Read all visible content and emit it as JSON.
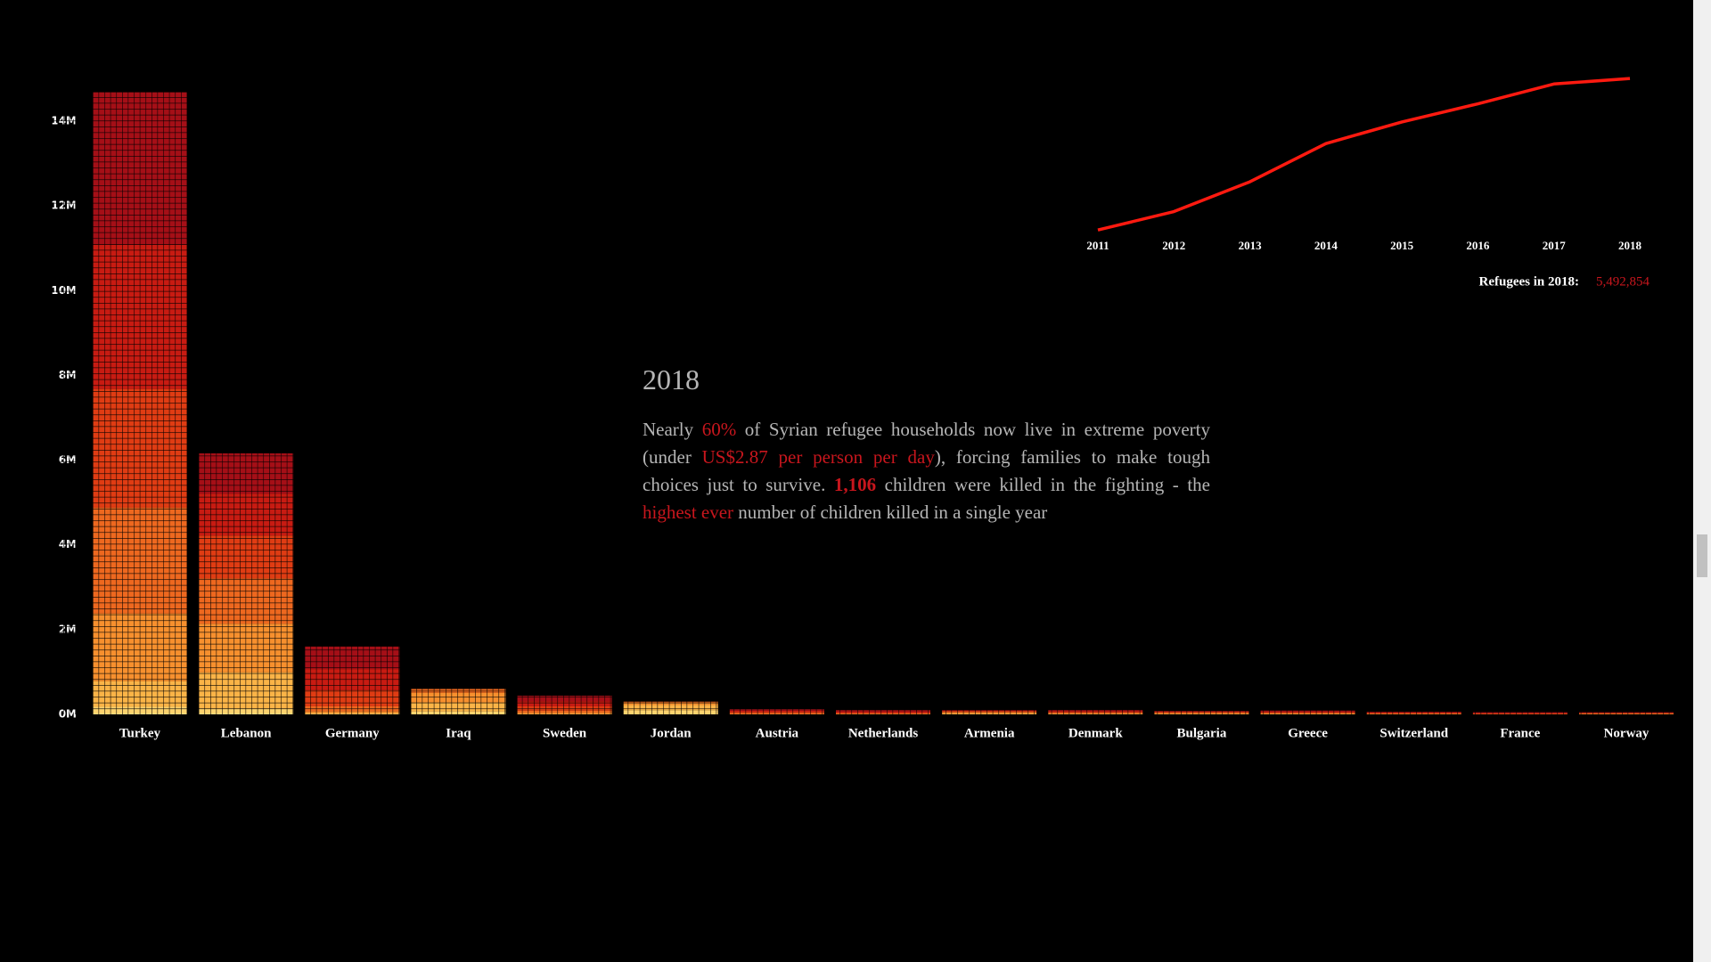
{
  "chart_data": [
    {
      "type": "bar",
      "stacked": true,
      "categories": [
        "Turkey",
        "Lebanon",
        "Germany",
        "Iraq",
        "Sweden",
        "Jordan",
        "Austria",
        "Netherlands",
        "Armenia",
        "Denmark",
        "Bulgaria",
        "Greece",
        "Switzerland",
        "France",
        "Norway"
      ],
      "series": [
        {
          "name": "2011",
          "color": "#fff09a",
          "values": [
            10000,
            10000,
            0,
            0,
            0,
            0,
            0,
            0,
            0,
            0,
            0,
            0,
            0,
            0,
            0
          ]
        },
        {
          "name": "2012",
          "color": "#fdd36e",
          "values": [
            170000,
            130000,
            10000,
            70000,
            0,
            100000,
            0,
            0,
            0,
            0,
            0,
            0,
            0,
            0,
            0
          ]
        },
        {
          "name": "2013",
          "color": "#fbb447",
          "values": [
            600000,
            850000,
            20000,
            210000,
            10000,
            120000,
            0,
            0,
            20000,
            10000,
            10000,
            10000,
            0,
            0,
            0
          ]
        },
        {
          "name": "2014",
          "color": "#f7902e",
          "values": [
            1600000,
            1150000,
            40000,
            230000,
            30000,
            60000,
            10000,
            10000,
            20000,
            10000,
            10000,
            10000,
            10000,
            0,
            10000
          ]
        },
        {
          "name": "2015",
          "color": "#ee681f",
          "values": [
            2500000,
            1070000,
            120000,
            90000,
            50000,
            20000,
            20000,
            10000,
            20000,
            20000,
            20000,
            10000,
            10000,
            10000,
            10000
          ]
        },
        {
          "name": "2016",
          "color": "#e03c13",
          "values": [
            2800000,
            1010000,
            380000,
            0,
            100000,
            0,
            30000,
            20000,
            20000,
            20000,
            20000,
            20000,
            10000,
            10000,
            10000
          ]
        },
        {
          "name": "2017",
          "color": "#c81b12",
          "values": [
            3400000,
            990000,
            500000,
            0,
            120000,
            0,
            30000,
            30000,
            10000,
            20000,
            10000,
            20000,
            20000,
            10000,
            10000
          ]
        },
        {
          "name": "2018",
          "color": "#a50f17",
          "values": [
            3600000,
            950000,
            530000,
            0,
            130000,
            0,
            30000,
            30000,
            10000,
            20000,
            10000,
            20000,
            10000,
            20000,
            10000
          ]
        }
      ],
      "ylim": [
        0,
        15000000
      ],
      "yticks": [
        {
          "value": 0,
          "label": "0M"
        },
        {
          "value": 2000000,
          "label": "2M"
        },
        {
          "value": 4000000,
          "label": "4M"
        },
        {
          "value": 6000000,
          "label": "6M"
        },
        {
          "value": 8000000,
          "label": "8M"
        },
        {
          "value": 10000000,
          "label": "10M"
        },
        {
          "value": 12000000,
          "label": "12M"
        },
        {
          "value": 14000000,
          "label": "14M"
        }
      ]
    },
    {
      "type": "line",
      "x": [
        "2011",
        "2012",
        "2013",
        "2014",
        "2015",
        "2016",
        "2017",
        "2018"
      ],
      "values": [
        150000,
        800000,
        1850000,
        3200000,
        3960000,
        4600000,
        5300000,
        5492854
      ],
      "color": "#ff1a10",
      "ylim": [
        0,
        6000000
      ],
      "annotation": {
        "label": "Refugees in 2018:",
        "value": 5492854,
        "value_label": "5,492,854"
      }
    }
  ],
  "story": {
    "title": "2018",
    "paragraph": [
      {
        "text": "Nearly ",
        "highlight": false
      },
      {
        "text": "60%",
        "highlight": true
      },
      {
        "text": " of Syrian refugee households now live in extreme poverty (under ",
        "highlight": false
      },
      {
        "text": "US$2.87 per person per day",
        "highlight": true
      },
      {
        "text": "), forcing families to make tough choices just to survive. ",
        "highlight": false
      },
      {
        "text": "1,106",
        "highlight": true,
        "bold": true
      },
      {
        "text": " children were killed in the fighting - the ",
        "highlight": false
      },
      {
        "text": "highest ever",
        "highlight": true
      },
      {
        "text": " number of children killed in a single year",
        "highlight": false
      }
    ]
  }
}
